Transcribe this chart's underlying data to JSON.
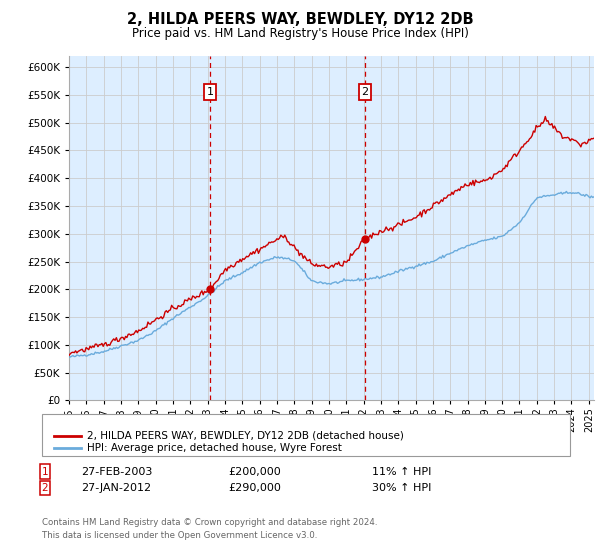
{
  "title": "2, HILDA PEERS WAY, BEWDLEY, DY12 2DB",
  "subtitle": "Price paid vs. HM Land Registry's House Price Index (HPI)",
  "ylabel_vals": [
    0,
    50000,
    100000,
    150000,
    200000,
    250000,
    300000,
    350000,
    400000,
    450000,
    500000,
    550000,
    600000
  ],
  "ylim": [
    0,
    620000
  ],
  "xlim_start": 1995.0,
  "xlim_end": 2025.3,
  "xticks": [
    1995,
    1996,
    1997,
    1998,
    1999,
    2000,
    2001,
    2002,
    2003,
    2004,
    2005,
    2006,
    2007,
    2008,
    2009,
    2010,
    2011,
    2012,
    2013,
    2014,
    2015,
    2016,
    2017,
    2018,
    2019,
    2020,
    2021,
    2022,
    2023,
    2024,
    2025
  ],
  "sale1_x": 2003.15,
  "sale1_y": 200000,
  "sale1_label": "1",
  "sale1_date": "27-FEB-2003",
  "sale1_price": "£200,000",
  "sale1_hpi": "11% ↑ HPI",
  "sale2_x": 2012.08,
  "sale2_y": 290000,
  "sale2_label": "2",
  "sale2_date": "27-JAN-2012",
  "sale2_price": "£290,000",
  "sale2_hpi": "30% ↑ HPI",
  "sale_color": "#cc0000",
  "hpi_color": "#6aabdc",
  "vline_color": "#cc0000",
  "background_color": "#ddeeff",
  "plot_bg": "#ffffff",
  "grid_color": "#cccccc",
  "legend_label_sale": "2, HILDA PEERS WAY, BEWDLEY, DY12 2DB (detached house)",
  "legend_label_hpi": "HPI: Average price, detached house, Wyre Forest",
  "footer": "Contains HM Land Registry data © Crown copyright and database right 2024.\nThis data is licensed under the Open Government Licence v3.0."
}
